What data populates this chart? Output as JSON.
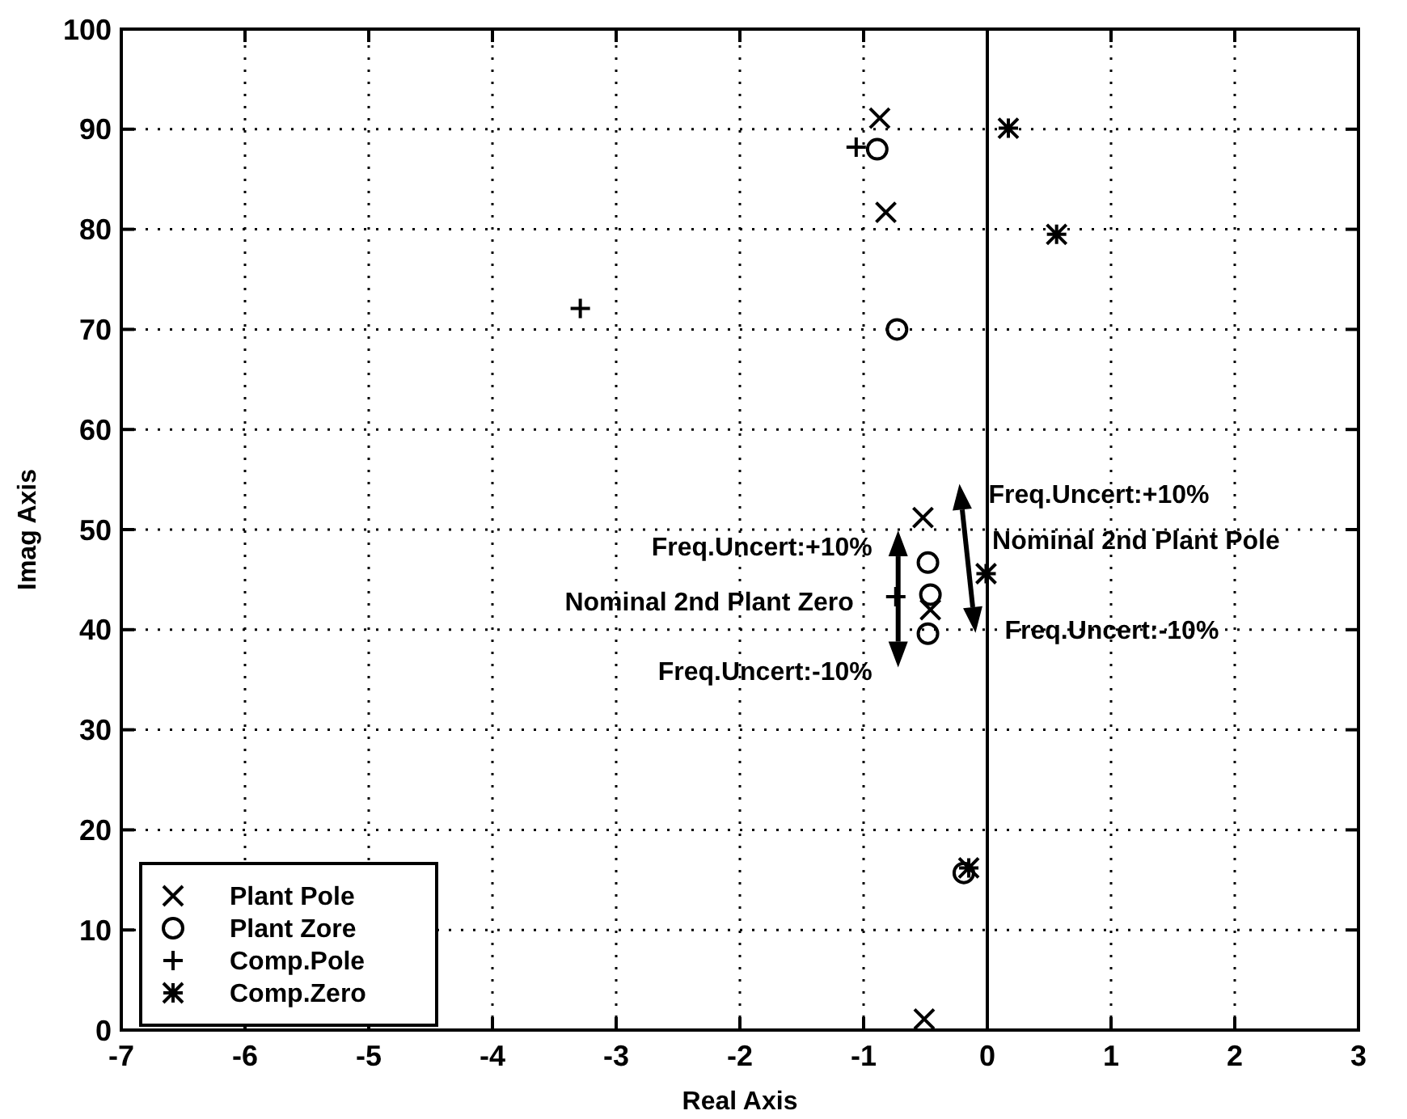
{
  "chart_data": {
    "type": "scatter",
    "xlabel": "Real Axis",
    "ylabel": "Imag Axis",
    "xlim": [
      -7,
      3
    ],
    "xticks": [
      -7,
      -6,
      -5,
      -4,
      -3,
      -2,
      -1,
      0,
      1,
      2,
      3
    ],
    "ylim": [
      0,
      100
    ],
    "yticks": [
      0,
      10,
      20,
      30,
      40,
      50,
      60,
      70,
      80,
      90,
      100
    ],
    "grid": true,
    "legend": "bottom left",
    "series": [
      {
        "name": "Plant Pole",
        "color": "#000000",
        "x": [
          -0.87,
          -0.82,
          -0.52,
          -0.46,
          -0.51
        ],
        "values": [
          91.1,
          81.7,
          51.2,
          42,
          1.1
        ]
      },
      {
        "name": "Plant Zore",
        "color": "#000000",
        "x": [
          -0.89,
          -0.73,
          -0.48,
          -0.46,
          -0.48,
          -0.19
        ],
        "values": [
          88,
          70,
          46.7,
          43.5,
          39.6,
          15.7
        ]
      },
      {
        "name": "Comp.Pole",
        "color": "#000000",
        "x": [
          -1.06,
          -3.29,
          -0.74
        ],
        "values": [
          88.2,
          72.1,
          43.3
        ]
      },
      {
        "name": "Comp.Zero",
        "color": "#000000",
        "x": [
          0.17,
          0.56,
          -0.01,
          -0.15
        ],
        "values": [
          90.1,
          79.5,
          45.6,
          16.2
        ]
      }
    ],
    "ref_lines": [
      {
        "axis": "x",
        "value": 0,
        "color": "#000000",
        "line_style": "solid"
      }
    ],
    "annotations": [
      "Freq.Uncert:+10%",
      "Nominal 2nd Plant Zero",
      "Freq.Uncert:-10%",
      "Freq.Uncert:+10%",
      "Nominal 2nd Plant Pole",
      "Freq.Uncert:-10%"
    ]
  }
}
